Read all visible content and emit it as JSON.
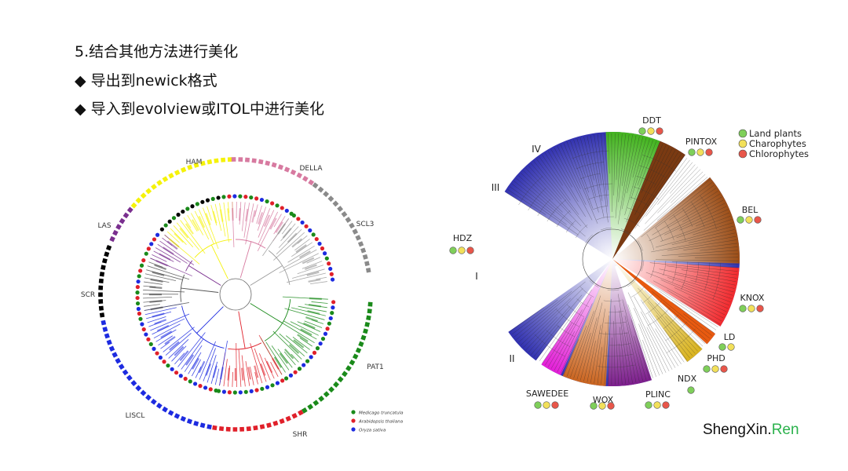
{
  "slide": {
    "heading_line1": "5.结合其他方法进行美化",
    "heading_line2": "◆ 导出到newick格式",
    "heading_line3": "◆ 导入到evolview或ITOL中进行美化"
  },
  "left_tree": {
    "clades": [
      {
        "label": "HAM",
        "color": "#f5f20a"
      },
      {
        "label": "DELLA",
        "color": "#d77aa0"
      },
      {
        "label": "SCL3",
        "color": "#8a8a8a"
      },
      {
        "label": "LAS",
        "color": "#7a2f8f"
      },
      {
        "label": "SCR",
        "color": "#000000"
      },
      {
        "label": "LISCL",
        "color": "#1d2be0"
      },
      {
        "label": "SHR",
        "color": "#e0202a"
      },
      {
        "label": "PAT1",
        "color": "#1a8a1a"
      }
    ],
    "legend": [
      {
        "label": "Medicago truncatula",
        "color": "#1a8a1a"
      },
      {
        "label": "Arabidopsis thaliana",
        "color": "#e0202a"
      },
      {
        "label": "Oryza sativa",
        "color": "#1d2be0"
      }
    ]
  },
  "right_tree": {
    "clades": [
      {
        "label": "DDT",
        "dots": [
          "#7fcf5a",
          "#f2e05a",
          "#e8564a"
        ]
      },
      {
        "label": "PINTOX",
        "dots": [
          "#7fcf5a",
          "#f2e05a",
          "#e8564a"
        ]
      },
      {
        "label": "BEL",
        "dots": [
          "#7fcf5a",
          "#f2e05a",
          "#e8564a"
        ]
      },
      {
        "label": "KNOX",
        "dots": [
          "#7fcf5a",
          "#f2e05a",
          "#e8564a"
        ]
      },
      {
        "label": "LD",
        "dots": [
          "#7fcf5a",
          "#f2e05a"
        ]
      },
      {
        "label": "PHD",
        "dots": [
          "#7fcf5a",
          "#f2e05a",
          "#e8564a"
        ]
      },
      {
        "label": "NDX",
        "dots": [
          "#7fcf5a"
        ]
      },
      {
        "label": "PLINC",
        "dots": [
          "#7fcf5a",
          "#f2e05a",
          "#e8564a"
        ]
      },
      {
        "label": "WOX",
        "dots": [
          "#7fcf5a",
          "#f2e05a",
          "#e8564a"
        ]
      },
      {
        "label": "SAWEDEE",
        "dots": [
          "#7fcf5a",
          "#f2e05a",
          "#e8564a"
        ]
      },
      {
        "label": "HDZ",
        "dots": [
          "#7fcf5a",
          "#f2e05a",
          "#e8564a"
        ]
      },
      {
        "label": "IV",
        "dots": []
      },
      {
        "label": "III",
        "dots": []
      },
      {
        "label": "I",
        "dots": []
      },
      {
        "label": "II",
        "dots": []
      }
    ],
    "legend": [
      {
        "label": "Land plants",
        "color": "#7fcf5a"
      },
      {
        "label": "Charophytes",
        "color": "#f2e05a"
      },
      {
        "label": "Chlorophytes",
        "color": "#e8564a"
      }
    ]
  },
  "footer": {
    "brand_main": "ShengXin.",
    "brand_accent": "Ren"
  }
}
